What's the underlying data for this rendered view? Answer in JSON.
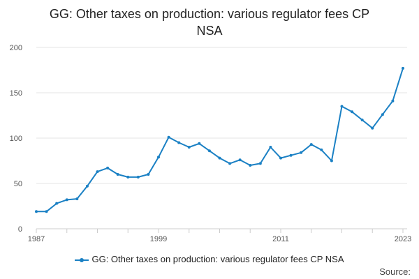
{
  "title": {
    "line1": "GG: Other taxes on production: various regulator fees CP",
    "line2": "NSA"
  },
  "legend": {
    "label": "GG: Other taxes on production: various regulator fees CP NSA"
  },
  "source": {
    "label": "Source:"
  },
  "colors": {
    "series": "#1a80c4",
    "grid": "#e6e6e6",
    "axis": "#cccccc"
  },
  "chart_data": {
    "type": "line",
    "title": "GG: Other taxes on production: various regulator fees CP NSA",
    "xlabel": "",
    "ylabel": "",
    "ylim": [
      0,
      200
    ],
    "yticks": [
      0,
      50,
      100,
      150,
      200
    ],
    "xlim": [
      1987,
      2023
    ],
    "xtick_labels": [
      "1987",
      "1999",
      "2011",
      "2023"
    ],
    "grid": true,
    "legend_position": "bottom",
    "series": [
      {
        "name": "GG: Other taxes on production: various regulator fees CP NSA",
        "x": [
          1987,
          1988,
          1989,
          1990,
          1991,
          1992,
          1993,
          1994,
          1995,
          1996,
          1997,
          1998,
          1999,
          2000,
          2001,
          2002,
          2003,
          2004,
          2005,
          2006,
          2007,
          2008,
          2009,
          2010,
          2011,
          2012,
          2013,
          2014,
          2015,
          2016,
          2017,
          2018,
          2019,
          2020,
          2021,
          2022,
          2023
        ],
        "values": [
          19,
          19,
          28,
          32,
          33,
          47,
          63,
          67,
          60,
          57,
          57,
          60,
          79,
          101,
          95,
          90,
          94,
          86,
          78,
          72,
          76,
          70,
          72,
          90,
          78,
          81,
          84,
          93,
          87,
          75,
          135,
          129,
          120,
          111,
          126,
          141,
          177
        ]
      }
    ]
  }
}
